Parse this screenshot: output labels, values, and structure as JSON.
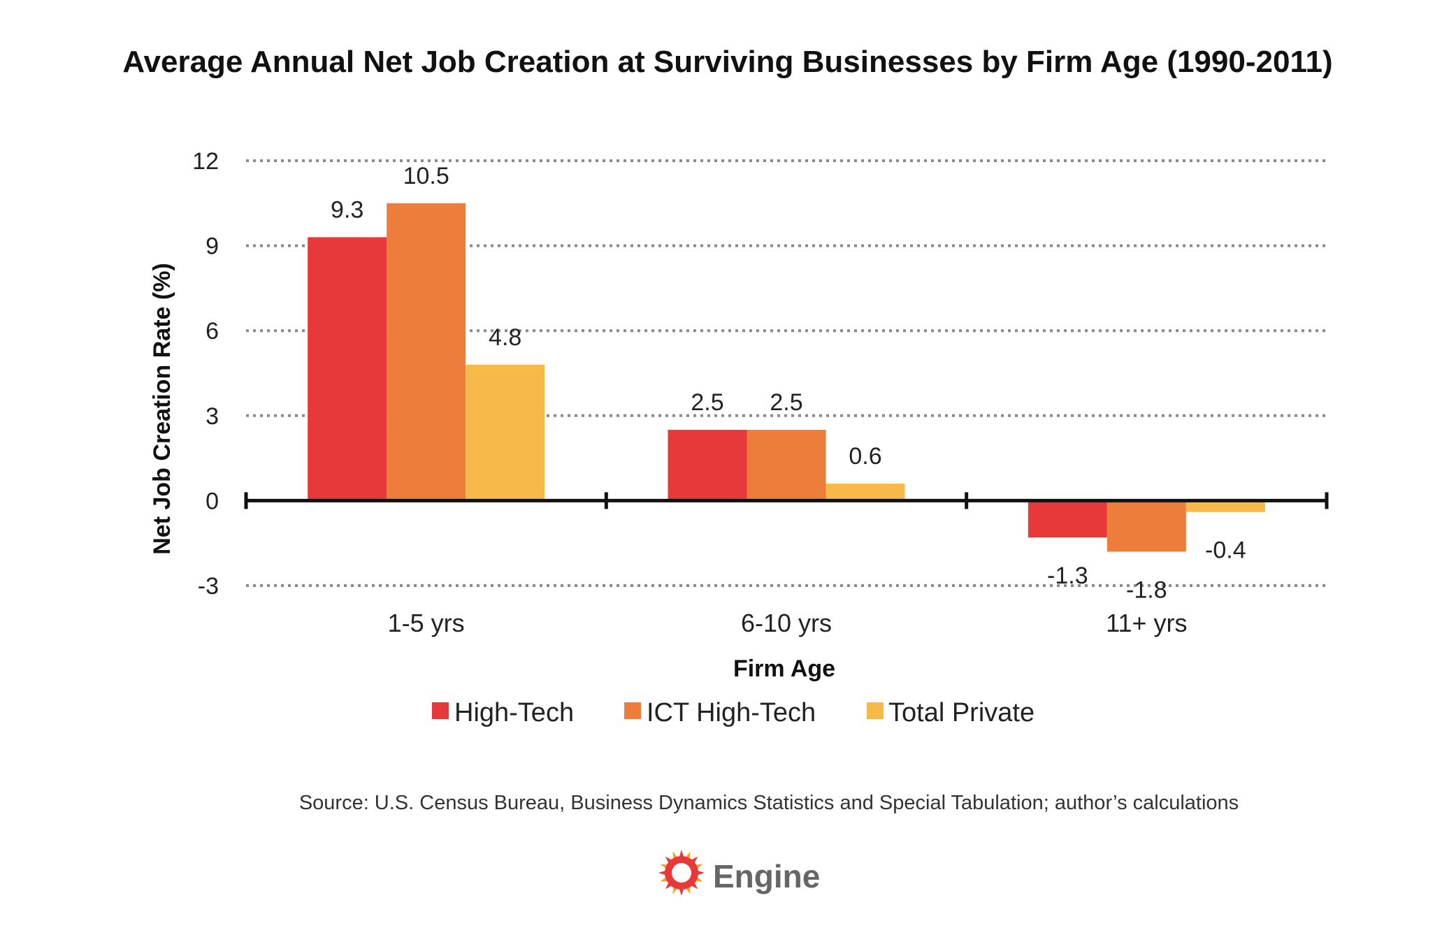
{
  "chart_data": {
    "type": "bar",
    "title": "Average Annual Net Job Creation at Surviving Businesses by Firm Age (1990-2011)",
    "xlabel": "Firm Age",
    "ylabel": "Net Job Creation Rate (%)",
    "categories": [
      "1-5 yrs",
      "6-10 yrs",
      "11+ yrs"
    ],
    "series": [
      {
        "name": "High-Tech",
        "color": "#E8393A",
        "values": [
          9.3,
          2.5,
          -1.3
        ],
        "labels": [
          "9.3",
          "2.5",
          "-1.3"
        ]
      },
      {
        "name": "ICT High-Tech",
        "color": "#ED7D3B",
        "values": [
          10.5,
          2.5,
          -1.8
        ],
        "labels": [
          "10.5",
          "2.5",
          "-1.8"
        ]
      },
      {
        "name": "Total Private",
        "color": "#F6B94A",
        "values": [
          4.8,
          0.6,
          -0.4
        ],
        "labels": [
          "4.8",
          "0.6",
          "-0.4"
        ]
      }
    ],
    "ylim": [
      -3,
      12
    ],
    "yticks": [
      "-3",
      "0",
      "3",
      "6",
      "9",
      "12"
    ],
    "grid": true,
    "legend_position": "bottom"
  },
  "footer": {
    "source": "Source: U.S. Census Bureau, Business Dynamics Statistics and Special Tabulation; author’s calculations",
    "brand": "Engine"
  },
  "colors": {
    "axis": "#111111",
    "grid": "#8a8a8a",
    "brand_outer": "#F7A51E",
    "brand_inner": "#E8393A"
  }
}
